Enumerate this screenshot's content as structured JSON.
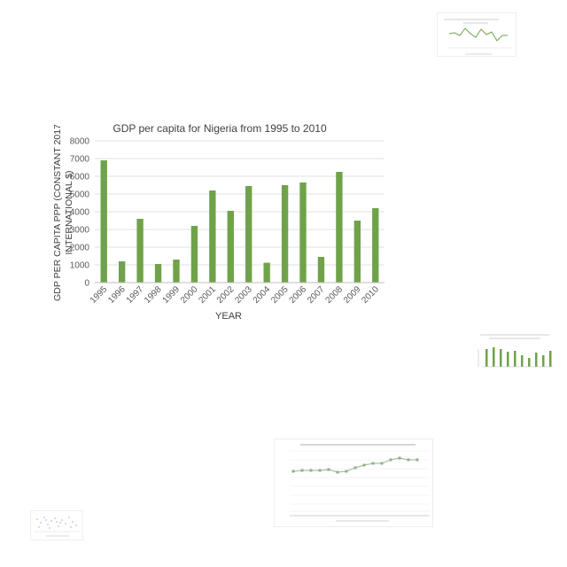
{
  "colors": {
    "bar": "#70a24a",
    "axis": "#595959",
    "grid": "#d9d9d9",
    "mini_line": "#70a24a",
    "mini_marker": "#a9c4a3"
  },
  "chart_data": [
    {
      "type": "bar",
      "title": "GDP per capita for Nigeria from 1995 to 2010",
      "xlabel": "YEAR",
      "ylabel": "GDP PER CAPITA PPP (CONSTANT 2017 INTERNATIONAL $)",
      "ylabel_lines": [
        "GDP PER CAPITA PPP (CONSTANT 2017",
        "INTERNATIONAL $)"
      ],
      "categories": [
        "1995",
        "1996",
        "1997",
        "1998",
        "1999",
        "2000",
        "2001",
        "2002",
        "2003",
        "2004",
        "2005",
        "2006",
        "2007",
        "2008",
        "2009",
        "2010"
      ],
      "values": [
        6900,
        1200,
        3600,
        1050,
        1300,
        3200,
        5200,
        4050,
        5450,
        1120,
        5500,
        5650,
        1450,
        6250,
        3500,
        4200
      ],
      "ylim": [
        0,
        8000
      ],
      "yticks": [
        "0",
        "1000",
        "2000",
        "3000",
        "4000",
        "5000",
        "6000",
        "7000",
        "8000"
      ],
      "grid": true
    }
  ]
}
